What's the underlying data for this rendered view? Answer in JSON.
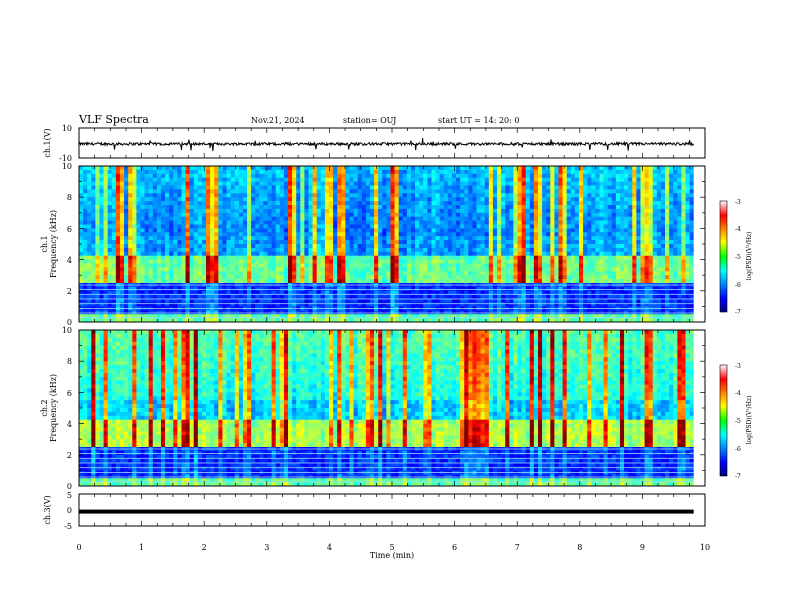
{
  "header": {
    "title": "VLF Spectra",
    "date": "Nov.21, 2024",
    "station": "station= OUJ",
    "start": "start  UT  =   14: 20: 0"
  },
  "chart_data": [
    {
      "type": "line",
      "id": "ch1-waveform",
      "ylabel": "ch.1(V)",
      "ylim": [
        -10,
        10
      ],
      "yticks": [
        "10",
        "-10"
      ],
      "x_range": [
        0,
        10
      ],
      "note_visible": "continuous noisy waveform around -0.5 V with spikes down near -1 V"
    },
    {
      "type": "heatmap",
      "id": "ch1-spectrogram",
      "ylabel": "ch.1",
      "ylabel2": "Frequency  (kHz)",
      "ylim": [
        0,
        10
      ],
      "yticks": [
        "0",
        "2",
        "4",
        "6",
        "8",
        "10"
      ],
      "xlim": [
        0,
        10
      ],
      "colorbar": {
        "label": "log(PSD)(V²/Hz)",
        "range": [
          -7,
          -3
        ],
        "ticks": [
          "-3",
          "-4",
          "-5",
          "-6",
          "-7"
        ],
        "colormap": "jet"
      }
    },
    {
      "type": "heatmap",
      "id": "ch2-spectrogram",
      "ylabel": "ch.2",
      "ylabel2": "Frequency  (kHz)",
      "ylim": [
        0,
        10
      ],
      "yticks": [
        "0",
        "2",
        "4",
        "6",
        "8",
        "10"
      ],
      "xlim": [
        0,
        10
      ],
      "colorbar": {
        "label": "log(PSD)(V²/Hz)",
        "range": [
          -7,
          -3
        ],
        "ticks": [
          "-3",
          "-4",
          "-5",
          "-6",
          "-7"
        ],
        "colormap": "jet"
      }
    },
    {
      "type": "line",
      "id": "ch3-waveform",
      "ylabel": "ch.3(V)",
      "ylim": [
        -5,
        5
      ],
      "yticks": [
        "5",
        "0",
        "-5"
      ],
      "constant_value": -0.5
    }
  ],
  "xaxis": {
    "label": "Time  (min)",
    "ticks": [
      "0",
      "1",
      "2",
      "3",
      "4",
      "5",
      "6",
      "7",
      "8",
      "9",
      "10"
    ],
    "xlim": [
      0,
      10
    ]
  }
}
